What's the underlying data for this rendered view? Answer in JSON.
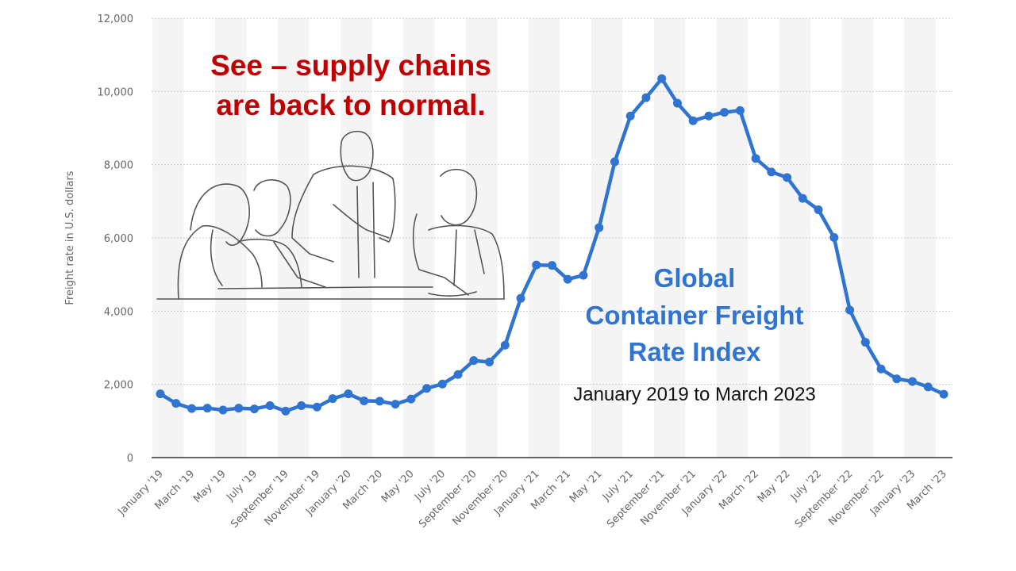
{
  "chart_data": {
    "type": "line",
    "ylabel": "Freight rate in U.S. dollars",
    "xlabel": "",
    "ylim": [
      0,
      12000
    ],
    "yticks": [
      0,
      2000,
      4000,
      6000,
      8000,
      10000,
      12000
    ],
    "ytick_labels": [
      "0",
      "2,000",
      "4,000",
      "6,000",
      "8,000",
      "10,000",
      "12,000"
    ],
    "grid": true,
    "series_color": "#2f74d0",
    "categories": [
      "January '19",
      "February '19",
      "March '19",
      "April '19",
      "May '19",
      "June '19",
      "July '19",
      "August '19",
      "September '19",
      "October '19",
      "November '19",
      "December '19",
      "January '20",
      "February '20",
      "March '20",
      "April '20",
      "May '20",
      "June '20",
      "July '20",
      "August '20",
      "September '20",
      "October '20",
      "November '20",
      "December '20",
      "January '21",
      "February '21",
      "March '21",
      "April '21",
      "May '21",
      "June '21",
      "July '21",
      "August '21",
      "September '21",
      "October '21",
      "November '21",
      "December '21",
      "January '22",
      "February '22",
      "March '22",
      "April '22",
      "May '22",
      "June '22",
      "July '22",
      "August '22",
      "September '22",
      "October '22",
      "November '22",
      "December '22",
      "January '23",
      "February '23",
      "March '23"
    ],
    "tick_labels": [
      "January '19",
      "March '19",
      "May '19",
      "July '19",
      "September '19",
      "November '19",
      "January '20",
      "March '20",
      "May '20",
      "July '20",
      "September '20",
      "November '20",
      "January '21",
      "March '21",
      "May '21",
      "July '21",
      "September '21",
      "November '21",
      "January '22",
      "March '22",
      "May '22",
      "July '22",
      "September '22",
      "November '22",
      "January '23",
      "March '23"
    ],
    "series": [
      {
        "name": "Global Container Freight Rate Index",
        "values": [
          1740,
          1480,
          1340,
          1350,
          1300,
          1350,
          1330,
          1420,
          1270,
          1420,
          1380,
          1610,
          1740,
          1550,
          1540,
          1460,
          1600,
          1890,
          2010,
          2270,
          2650,
          2610,
          3070,
          4350,
          5260,
          5250,
          4870,
          4980,
          6280,
          8080,
          9330,
          9830,
          10350,
          9680,
          9200,
          9330,
          9430,
          9480,
          8170,
          7800,
          7650,
          7080,
          6770,
          6010,
          4030,
          3150,
          2420,
          2150,
          2080,
          1930,
          1730
        ]
      }
    ]
  },
  "annotations": {
    "callout_line1": "See – supply chains",
    "callout_line2": "are back to normal.",
    "callout_color": "#c00000",
    "title_line1": "Global",
    "title_line2": "Container Freight",
    "title_line3": "Rate Index",
    "title_color": "#2f74d0",
    "subtitle": "January 2019 to March 2023"
  }
}
